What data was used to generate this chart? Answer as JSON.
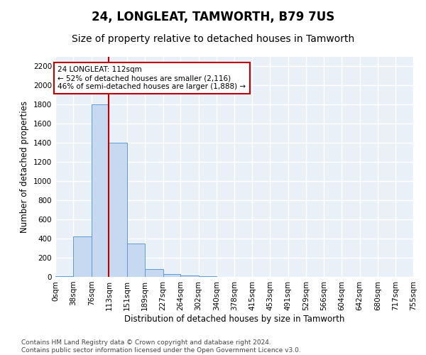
{
  "title": "24, LONGLEAT, TAMWORTH, B79 7US",
  "subtitle": "Size of property relative to detached houses in Tamworth",
  "xlabel": "Distribution of detached houses by size in Tamworth",
  "ylabel": "Number of detached properties",
  "bar_color": "#c6d9f0",
  "bar_edge_color": "#5b9bd5",
  "bg_color": "#eaf0f8",
  "grid_color": "#ffffff",
  "annotation_line_color": "#c00000",
  "annotation_box_color": "#c00000",
  "annotation_text": "24 LONGLEAT: 112sqm\n← 52% of detached houses are smaller (2,116)\n46% of semi-detached houses are larger (1,888) →",
  "property_sqm": 112,
  "bin_edges": [
    0,
    38,
    76,
    113,
    151,
    189,
    227,
    264,
    302,
    340,
    378,
    415,
    453,
    491,
    529,
    566,
    604,
    642,
    680,
    717,
    755
  ],
  "bin_values": [
    10,
    420,
    1800,
    1400,
    350,
    80,
    30,
    15,
    5,
    2,
    1,
    0,
    0,
    0,
    0,
    0,
    0,
    0,
    0,
    0
  ],
  "ylim": [
    0,
    2300
  ],
  "yticks": [
    0,
    200,
    400,
    600,
    800,
    1000,
    1200,
    1400,
    1600,
    1800,
    2000,
    2200
  ],
  "footer": "Contains HM Land Registry data © Crown copyright and database right 2024.\nContains public sector information licensed under the Open Government Licence v3.0.",
  "title_fontsize": 12,
  "subtitle_fontsize": 10,
  "label_fontsize": 8.5,
  "tick_fontsize": 7.5,
  "footer_fontsize": 6.5
}
